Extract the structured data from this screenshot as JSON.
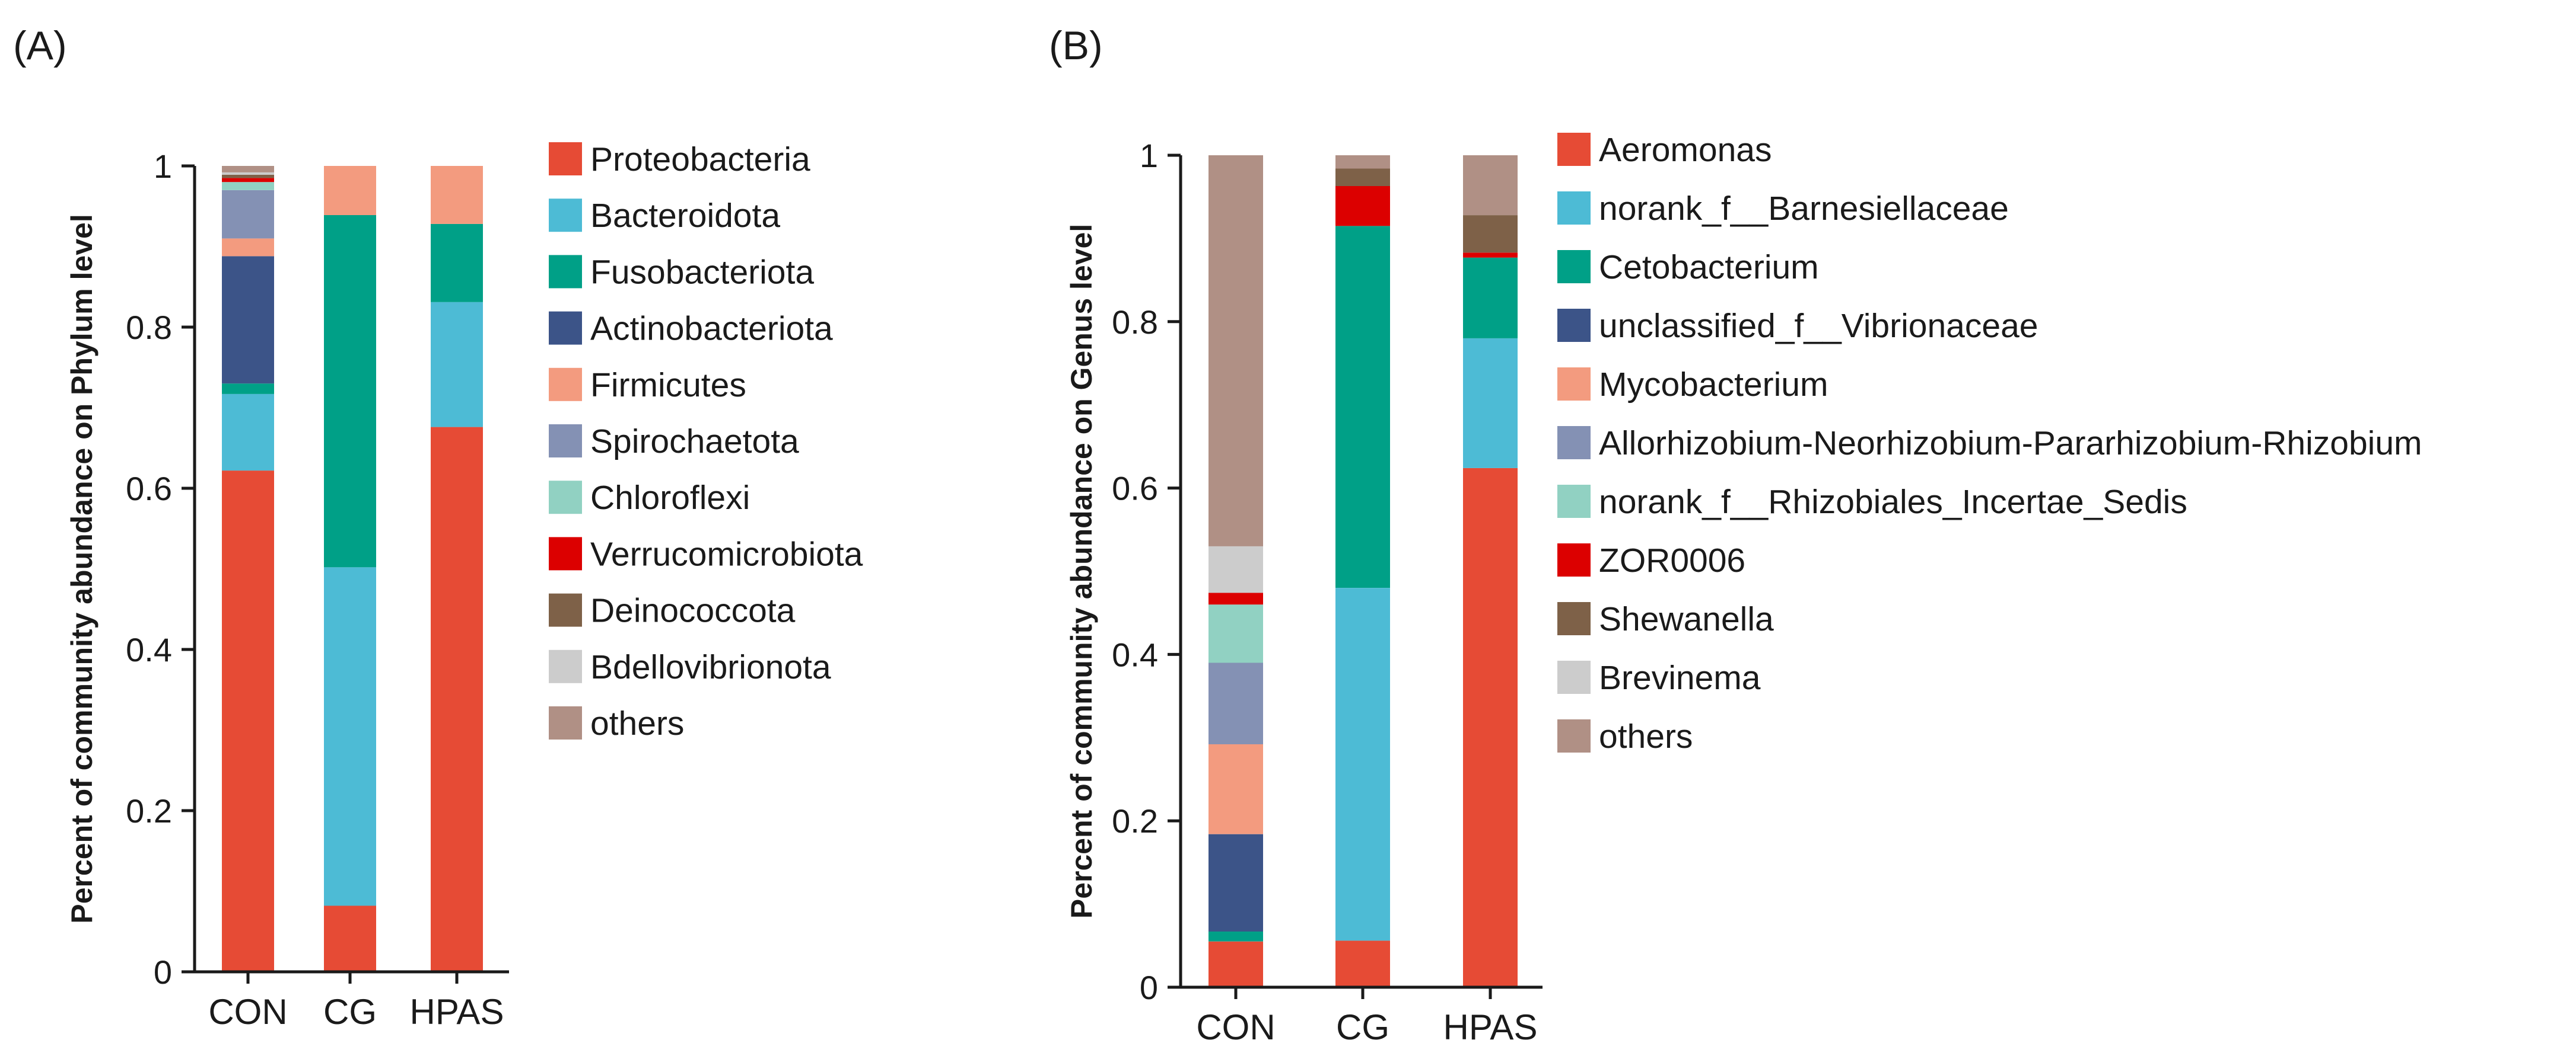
{
  "figure": {
    "background": "#ffffff"
  },
  "chart_data": [
    {
      "type": "bar",
      "stacked": true,
      "panel_label": "(A)",
      "title": "",
      "xlabel": "",
      "ylabel": "Percent of community abundance on Phylum level",
      "ylim": [
        0,
        1
      ],
      "yticks": [
        0,
        0.2,
        0.4,
        0.6,
        0.8,
        1
      ],
      "ytick_labels": [
        "0",
        "0.2",
        "0.4",
        "0.6",
        "0.8",
        "1"
      ],
      "categories": [
        "CON",
        "CG",
        "HPAS"
      ],
      "legend_position": "right",
      "series": [
        {
          "name": "Proteobacteria",
          "color": "#e64b35",
          "values": [
            0.622,
            0.082,
            0.676
          ]
        },
        {
          "name": "Bacteroidota",
          "color": "#4dbbd5",
          "values": [
            0.095,
            0.42,
            0.155
          ]
        },
        {
          "name": "Fusobacteriota",
          "color": "#00a087",
          "values": [
            0.013,
            0.437,
            0.097
          ]
        },
        {
          "name": "Actinobacteriota",
          "color": "#3c5488",
          "values": [
            0.158,
            0.0,
            0.0
          ]
        },
        {
          "name": "Firmicutes",
          "color": "#f39b7f",
          "values": [
            0.022,
            0.061,
            0.072
          ]
        },
        {
          "name": "Spirochaetota",
          "color": "#8491b4",
          "values": [
            0.06,
            0.0,
            0.0
          ]
        },
        {
          "name": "Chloroflexi",
          "color": "#91d1c2",
          "values": [
            0.01,
            0.0,
            0.0
          ]
        },
        {
          "name": "Verrucomicrobiota",
          "color": "#dc0000",
          "values": [
            0.005,
            0.0,
            0.0
          ]
        },
        {
          "name": "Deinococcota",
          "color": "#7e6148",
          "values": [
            0.004,
            0.0,
            0.0
          ]
        },
        {
          "name": "Bdellovibrionota",
          "color": "#cccccc",
          "values": [
            0.003,
            0.0,
            0.0
          ]
        },
        {
          "name": "others",
          "color": "#b09085",
          "values": [
            0.008,
            0.0,
            0.0
          ]
        }
      ]
    },
    {
      "type": "bar",
      "stacked": true,
      "panel_label": "(B)",
      "title": "",
      "xlabel": "",
      "ylabel": "Percent of community abundance on Genus level",
      "ylim": [
        0,
        1
      ],
      "yticks": [
        0,
        0.2,
        0.4,
        0.6,
        0.8,
        1
      ],
      "ytick_labels": [
        "0",
        "0.2",
        "0.4",
        "0.6",
        "0.8",
        "1"
      ],
      "categories": [
        "CON",
        "CG",
        "HPAS"
      ],
      "legend_position": "right",
      "series": [
        {
          "name": "Aeromonas",
          "color": "#e64b35",
          "values": [
            0.055,
            0.056,
            0.624
          ]
        },
        {
          "name": "norank_f__Barnesiellaceae",
          "color": "#4dbbd5",
          "values": [
            0.0,
            0.424,
            0.156
          ]
        },
        {
          "name": "Cetobacterium",
          "color": "#00a087",
          "values": [
            0.012,
            0.435,
            0.097
          ]
        },
        {
          "name": "unclassified_f__Vibrionaceae",
          "color": "#3c5488",
          "values": [
            0.117,
            0.0,
            0.0
          ]
        },
        {
          "name": "Mycobacterium",
          "color": "#f39b7f",
          "values": [
            0.108,
            0.0,
            0.0
          ]
        },
        {
          "name": "Allorhizobium-Neorhizobium-Pararhizobium-Rhizobium",
          "color": "#8491b4",
          "values": [
            0.098,
            0.0,
            0.0
          ]
        },
        {
          "name": "norank_f__Rhizobiales_Incertae_Sedis",
          "color": "#91d1c2",
          "values": [
            0.07,
            0.0,
            0.0
          ]
        },
        {
          "name": "ZOR0006",
          "color": "#dc0000",
          "values": [
            0.014,
            0.048,
            0.006
          ]
        },
        {
          "name": "Shewanella",
          "color": "#7e6148",
          "values": [
            0.0,
            0.021,
            0.045
          ]
        },
        {
          "name": "Brevinema",
          "color": "#cccccc",
          "values": [
            0.056,
            0.0,
            0.0
          ]
        },
        {
          "name": "others",
          "color": "#b09085",
          "values": [
            0.47,
            0.016,
            0.072
          ]
        }
      ]
    }
  ]
}
